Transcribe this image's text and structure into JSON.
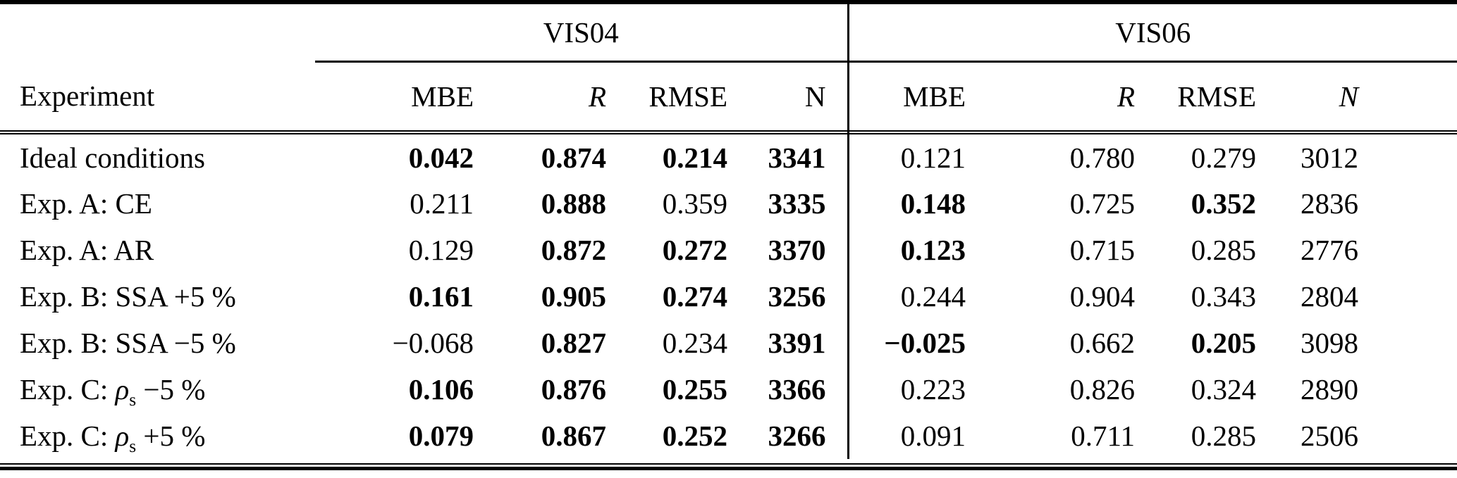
{
  "page": {
    "background": "#ffffff",
    "text_color": "#000000"
  },
  "table": {
    "corner_label": "Experiment",
    "groups": [
      {
        "label": "VIS04"
      },
      {
        "label": "VIS06"
      }
    ],
    "columns": [
      {
        "label": "MBE",
        "italic": false
      },
      {
        "label": "R",
        "italic": true
      },
      {
        "label": "RMSE",
        "italic": false
      },
      {
        "label": "N",
        "italic": true
      },
      {
        "label": "MBE",
        "italic": false
      },
      {
        "label": "R",
        "italic": true
      },
      {
        "label": "RMSE",
        "italic": false
      },
      {
        "label": "N",
        "italic": true
      }
    ],
    "rows": [
      {
        "label": [
          {
            "t": "Ideal conditions"
          }
        ],
        "values": [
          {
            "v": "0.042",
            "bold": true
          },
          {
            "v": "0.874",
            "bold": true
          },
          {
            "v": "0.214",
            "bold": true
          },
          {
            "v": "3341",
            "bold": true
          },
          {
            "v": "0.121",
            "bold": false
          },
          {
            "v": "0.780",
            "bold": false
          },
          {
            "v": "0.279",
            "bold": false
          },
          {
            "v": "3012",
            "bold": false
          }
        ]
      },
      {
        "label": [
          {
            "t": "Exp. A: CE"
          }
        ],
        "values": [
          {
            "v": "0.211",
            "bold": false
          },
          {
            "v": "0.888",
            "bold": true
          },
          {
            "v": "0.359",
            "bold": false
          },
          {
            "v": "3335",
            "bold": true
          },
          {
            "v": "0.148",
            "bold": true
          },
          {
            "v": "0.725",
            "bold": false
          },
          {
            "v": "0.352",
            "bold": true
          },
          {
            "v": "2836",
            "bold": false
          }
        ]
      },
      {
        "label": [
          {
            "t": "Exp. A: AR"
          }
        ],
        "values": [
          {
            "v": "0.129",
            "bold": false
          },
          {
            "v": "0.872",
            "bold": true
          },
          {
            "v": "0.272",
            "bold": true
          },
          {
            "v": "3370",
            "bold": true
          },
          {
            "v": "0.123",
            "bold": true
          },
          {
            "v": "0.715",
            "bold": false
          },
          {
            "v": "0.285",
            "bold": false
          },
          {
            "v": "2776",
            "bold": false
          }
        ]
      },
      {
        "label": [
          {
            "t": "Exp. B: SSA +5 %"
          }
        ],
        "values": [
          {
            "v": "0.161",
            "bold": true
          },
          {
            "v": "0.905",
            "bold": true
          },
          {
            "v": "0.274",
            "bold": true
          },
          {
            "v": "3256",
            "bold": true
          },
          {
            "v": "0.244",
            "bold": false
          },
          {
            "v": "0.904",
            "bold": false
          },
          {
            "v": "0.343",
            "bold": false
          },
          {
            "v": "2804",
            "bold": false
          }
        ]
      },
      {
        "label": [
          {
            "t": "Exp. B: SSA −5 %"
          }
        ],
        "values": [
          {
            "v": "−0.068",
            "bold": false
          },
          {
            "v": "0.827",
            "bold": true
          },
          {
            "v": "0.234",
            "bold": false
          },
          {
            "v": "3391",
            "bold": true
          },
          {
            "v": "−0.025",
            "bold": true
          },
          {
            "v": "0.662",
            "bold": false
          },
          {
            "v": "0.205",
            "bold": true
          },
          {
            "v": "3098",
            "bold": false
          }
        ]
      },
      {
        "label": [
          {
            "t": "Exp. C: "
          },
          {
            "t": "ρ",
            "italic": true
          },
          {
            "t": "s",
            "sub": true
          },
          {
            "t": " −5 %"
          }
        ],
        "values": [
          {
            "v": "0.106",
            "bold": true
          },
          {
            "v": "0.876",
            "bold": true
          },
          {
            "v": "0.255",
            "bold": true
          },
          {
            "v": "3366",
            "bold": true
          },
          {
            "v": "0.223",
            "bold": false
          },
          {
            "v": "0.826",
            "bold": false
          },
          {
            "v": "0.324",
            "bold": false
          },
          {
            "v": "2890",
            "bold": false
          }
        ]
      },
      {
        "label": [
          {
            "t": "Exp. C: "
          },
          {
            "t": "ρ",
            "italic": true
          },
          {
            "t": "s",
            "sub": true
          },
          {
            "t": " +5 %"
          }
        ],
        "values": [
          {
            "v": "0.079",
            "bold": true
          },
          {
            "v": "0.867",
            "bold": true
          },
          {
            "v": "0.252",
            "bold": true
          },
          {
            "v": "3266",
            "bold": true
          },
          {
            "v": "0.091",
            "bold": false
          },
          {
            "v": "0.711",
            "bold": false
          },
          {
            "v": "0.285",
            "bold": false
          },
          {
            "v": "2506",
            "bold": false
          }
        ]
      }
    ]
  }
}
